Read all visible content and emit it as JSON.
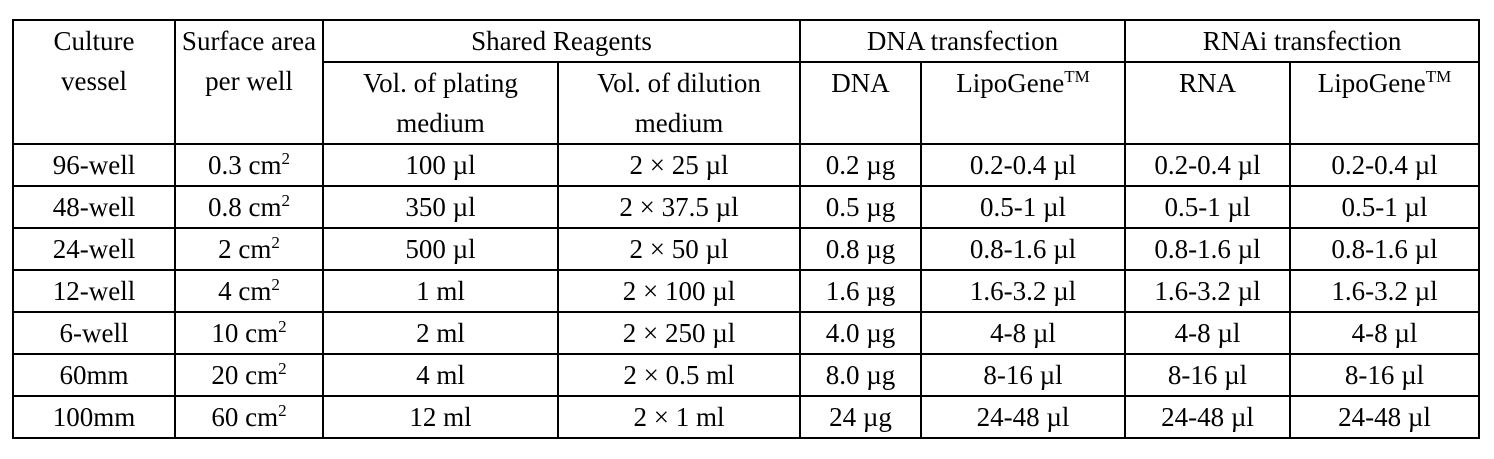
{
  "table": {
    "headers": {
      "culture_vessel": "Culture vessel",
      "surface_area": "Surface area per well",
      "shared_reagents": "Shared Reagents",
      "dna_transfection": "DNA transfection",
      "rnai_transfection": "RNAi transfection",
      "vol_plating": "Vol. of plating medium",
      "vol_dilution": "Vol. of dilution medium",
      "dna": "DNA",
      "lipogene_dna": "LipoGene",
      "lipogene_dna_sup": "TM",
      "rna": "RNA",
      "lipogene_rna": "LipoGene",
      "lipogene_rna_sup": "TM"
    },
    "rows": [
      {
        "vessel": "96-well",
        "area": "0.3 cm",
        "area_sup": "2",
        "plating": "100 µl",
        "dilution": "2 × 25 µl",
        "dna": "0.2 µg",
        "lipo_dna": "0.2-0.4 µl",
        "rna": "0.2-0.4 µl",
        "lipo_rna": "0.2-0.4 µl"
      },
      {
        "vessel": "48-well",
        "area": "0.8 cm",
        "area_sup": "2",
        "plating": "350 µl",
        "dilution": "2 × 37.5 µl",
        "dna": "0.5 µg",
        "lipo_dna": "0.5-1 µl",
        "rna": "0.5-1 µl",
        "lipo_rna": "0.5-1 µl"
      },
      {
        "vessel": "24-well",
        "area": "2 cm",
        "area_sup": "2",
        "plating": "500 µl",
        "dilution": "2 × 50 µl",
        "dna": "0.8 µg",
        "lipo_dna": "0.8-1.6 µl",
        "rna": "0.8-1.6 µl",
        "lipo_rna": "0.8-1.6 µl"
      },
      {
        "vessel": "12-well",
        "area": "4 cm",
        "area_sup": "2",
        "plating": "1 ml",
        "dilution": "2 × 100 µl",
        "dna": "1.6 µg",
        "lipo_dna": "1.6-3.2 µl",
        "rna": "1.6-3.2 µl",
        "lipo_rna": "1.6-3.2 µl"
      },
      {
        "vessel": "6-well",
        "area": "10 cm",
        "area_sup": "2",
        "plating": "2 ml",
        "dilution": "2 × 250 µl",
        "dna": "4.0 µg",
        "lipo_dna": "4-8 µl",
        "rna": "4-8 µl",
        "lipo_rna": "4-8 µl"
      },
      {
        "vessel": "60mm",
        "area": "20 cm",
        "area_sup": "2",
        "plating": "4 ml",
        "dilution": "2 × 0.5 ml",
        "dna": "8.0 µg",
        "lipo_dna": "8-16 µl",
        "rna": "8-16 µl",
        "lipo_rna": "8-16 µl"
      },
      {
        "vessel": "100mm",
        "area": "60 cm",
        "area_sup": "2",
        "plating": "12 ml",
        "dilution": "2 × 1 ml",
        "dna": "24 µg",
        "lipo_dna": "24-48 µl",
        "rna": "24-48 µl",
        "lipo_rna": "24-48 µl"
      }
    ]
  }
}
